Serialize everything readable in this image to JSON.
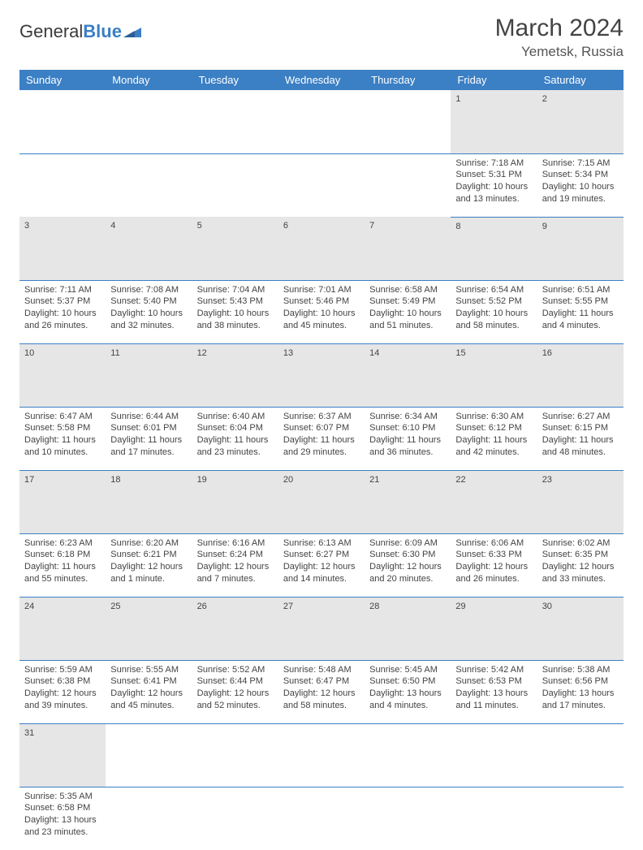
{
  "brand": {
    "part1": "General",
    "part2": "Blue"
  },
  "title": "March 2024",
  "location": "Yemetsk, Russia",
  "colors": {
    "header_bg": "#3b7fc4",
    "header_text": "#ffffff",
    "daynum_bg": "#e6e6e6",
    "row_divider": "#3b7fc4",
    "text": "#444444",
    "page_bg": "#ffffff"
  },
  "weekdays": [
    "Sunday",
    "Monday",
    "Tuesday",
    "Wednesday",
    "Thursday",
    "Friday",
    "Saturday"
  ],
  "weeks": [
    [
      null,
      null,
      null,
      null,
      null,
      {
        "n": "1",
        "sr": "Sunrise: 7:18 AM",
        "ss": "Sunset: 5:31 PM",
        "d1": "Daylight: 10 hours",
        "d2": "and 13 minutes."
      },
      {
        "n": "2",
        "sr": "Sunrise: 7:15 AM",
        "ss": "Sunset: 5:34 PM",
        "d1": "Daylight: 10 hours",
        "d2": "and 19 minutes."
      }
    ],
    [
      {
        "n": "3",
        "sr": "Sunrise: 7:11 AM",
        "ss": "Sunset: 5:37 PM",
        "d1": "Daylight: 10 hours",
        "d2": "and 26 minutes."
      },
      {
        "n": "4",
        "sr": "Sunrise: 7:08 AM",
        "ss": "Sunset: 5:40 PM",
        "d1": "Daylight: 10 hours",
        "d2": "and 32 minutes."
      },
      {
        "n": "5",
        "sr": "Sunrise: 7:04 AM",
        "ss": "Sunset: 5:43 PM",
        "d1": "Daylight: 10 hours",
        "d2": "and 38 minutes."
      },
      {
        "n": "6",
        "sr": "Sunrise: 7:01 AM",
        "ss": "Sunset: 5:46 PM",
        "d1": "Daylight: 10 hours",
        "d2": "and 45 minutes."
      },
      {
        "n": "7",
        "sr": "Sunrise: 6:58 AM",
        "ss": "Sunset: 5:49 PM",
        "d1": "Daylight: 10 hours",
        "d2": "and 51 minutes."
      },
      {
        "n": "8",
        "sr": "Sunrise: 6:54 AM",
        "ss": "Sunset: 5:52 PM",
        "d1": "Daylight: 10 hours",
        "d2": "and 58 minutes."
      },
      {
        "n": "9",
        "sr": "Sunrise: 6:51 AM",
        "ss": "Sunset: 5:55 PM",
        "d1": "Daylight: 11 hours",
        "d2": "and 4 minutes."
      }
    ],
    [
      {
        "n": "10",
        "sr": "Sunrise: 6:47 AM",
        "ss": "Sunset: 5:58 PM",
        "d1": "Daylight: 11 hours",
        "d2": "and 10 minutes."
      },
      {
        "n": "11",
        "sr": "Sunrise: 6:44 AM",
        "ss": "Sunset: 6:01 PM",
        "d1": "Daylight: 11 hours",
        "d2": "and 17 minutes."
      },
      {
        "n": "12",
        "sr": "Sunrise: 6:40 AM",
        "ss": "Sunset: 6:04 PM",
        "d1": "Daylight: 11 hours",
        "d2": "and 23 minutes."
      },
      {
        "n": "13",
        "sr": "Sunrise: 6:37 AM",
        "ss": "Sunset: 6:07 PM",
        "d1": "Daylight: 11 hours",
        "d2": "and 29 minutes."
      },
      {
        "n": "14",
        "sr": "Sunrise: 6:34 AM",
        "ss": "Sunset: 6:10 PM",
        "d1": "Daylight: 11 hours",
        "d2": "and 36 minutes."
      },
      {
        "n": "15",
        "sr": "Sunrise: 6:30 AM",
        "ss": "Sunset: 6:12 PM",
        "d1": "Daylight: 11 hours",
        "d2": "and 42 minutes."
      },
      {
        "n": "16",
        "sr": "Sunrise: 6:27 AM",
        "ss": "Sunset: 6:15 PM",
        "d1": "Daylight: 11 hours",
        "d2": "and 48 minutes."
      }
    ],
    [
      {
        "n": "17",
        "sr": "Sunrise: 6:23 AM",
        "ss": "Sunset: 6:18 PM",
        "d1": "Daylight: 11 hours",
        "d2": "and 55 minutes."
      },
      {
        "n": "18",
        "sr": "Sunrise: 6:20 AM",
        "ss": "Sunset: 6:21 PM",
        "d1": "Daylight: 12 hours",
        "d2": "and 1 minute."
      },
      {
        "n": "19",
        "sr": "Sunrise: 6:16 AM",
        "ss": "Sunset: 6:24 PM",
        "d1": "Daylight: 12 hours",
        "d2": "and 7 minutes."
      },
      {
        "n": "20",
        "sr": "Sunrise: 6:13 AM",
        "ss": "Sunset: 6:27 PM",
        "d1": "Daylight: 12 hours",
        "d2": "and 14 minutes."
      },
      {
        "n": "21",
        "sr": "Sunrise: 6:09 AM",
        "ss": "Sunset: 6:30 PM",
        "d1": "Daylight: 12 hours",
        "d2": "and 20 minutes."
      },
      {
        "n": "22",
        "sr": "Sunrise: 6:06 AM",
        "ss": "Sunset: 6:33 PM",
        "d1": "Daylight: 12 hours",
        "d2": "and 26 minutes."
      },
      {
        "n": "23",
        "sr": "Sunrise: 6:02 AM",
        "ss": "Sunset: 6:35 PM",
        "d1": "Daylight: 12 hours",
        "d2": "and 33 minutes."
      }
    ],
    [
      {
        "n": "24",
        "sr": "Sunrise: 5:59 AM",
        "ss": "Sunset: 6:38 PM",
        "d1": "Daylight: 12 hours",
        "d2": "and 39 minutes."
      },
      {
        "n": "25",
        "sr": "Sunrise: 5:55 AM",
        "ss": "Sunset: 6:41 PM",
        "d1": "Daylight: 12 hours",
        "d2": "and 45 minutes."
      },
      {
        "n": "26",
        "sr": "Sunrise: 5:52 AM",
        "ss": "Sunset: 6:44 PM",
        "d1": "Daylight: 12 hours",
        "d2": "and 52 minutes."
      },
      {
        "n": "27",
        "sr": "Sunrise: 5:48 AM",
        "ss": "Sunset: 6:47 PM",
        "d1": "Daylight: 12 hours",
        "d2": "and 58 minutes."
      },
      {
        "n": "28",
        "sr": "Sunrise: 5:45 AM",
        "ss": "Sunset: 6:50 PM",
        "d1": "Daylight: 13 hours",
        "d2": "and 4 minutes."
      },
      {
        "n": "29",
        "sr": "Sunrise: 5:42 AM",
        "ss": "Sunset: 6:53 PM",
        "d1": "Daylight: 13 hours",
        "d2": "and 11 minutes."
      },
      {
        "n": "30",
        "sr": "Sunrise: 5:38 AM",
        "ss": "Sunset: 6:56 PM",
        "d1": "Daylight: 13 hours",
        "d2": "and 17 minutes."
      }
    ],
    [
      {
        "n": "31",
        "sr": "Sunrise: 5:35 AM",
        "ss": "Sunset: 6:58 PM",
        "d1": "Daylight: 13 hours",
        "d2": "and 23 minutes."
      },
      null,
      null,
      null,
      null,
      null,
      null
    ]
  ]
}
